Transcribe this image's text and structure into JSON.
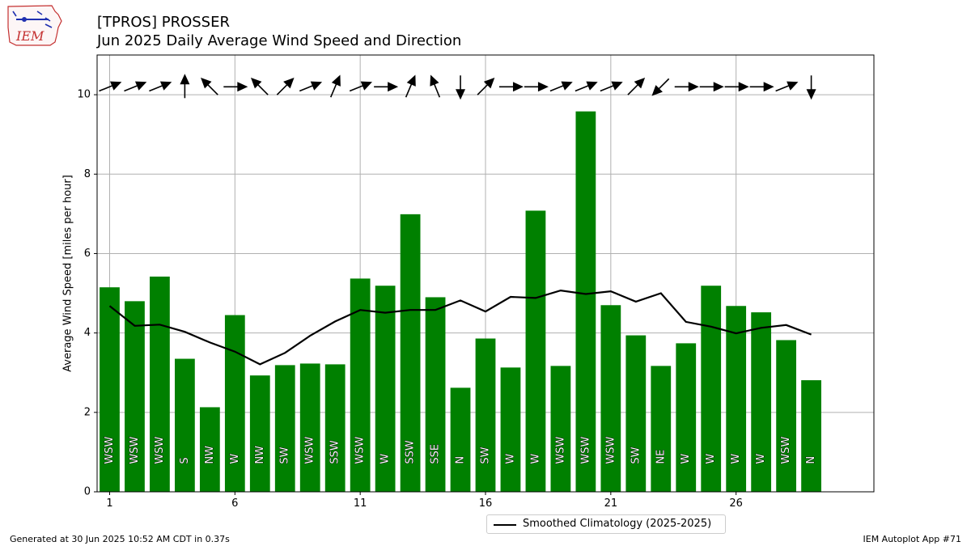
{
  "header": {
    "title_line1": "[TPROS] PROSSER",
    "title_line2": "Jun 2025 Daily Average Wind Speed and Direction"
  },
  "logo": {
    "text": "IEM",
    "icon": "iowa-state-map-logo"
  },
  "footer": {
    "generated": "Generated at 30 Jun 2025 10:52 AM CDT in 0.37s",
    "app": "IEM Autoplot App #71"
  },
  "legend": {
    "label": "Smoothed Climatology (2025-2025)"
  },
  "colors": {
    "bar": "#008000",
    "line": "#000000",
    "grid": "#b0b0b0",
    "label_text": "#ffffff"
  },
  "chart_data": {
    "type": "bar",
    "ylabel": "Average Wind Speed [miles per hour]",
    "xlabel": "",
    "xlim": [
      0.5,
      31.5
    ],
    "ylim": [
      0,
      11
    ],
    "xticks": [
      1,
      6,
      11,
      16,
      21,
      26
    ],
    "yticks": [
      0,
      2,
      4,
      6,
      8,
      10
    ],
    "grid": true,
    "legend_position": "below center",
    "days": [
      1,
      2,
      3,
      4,
      5,
      6,
      7,
      8,
      9,
      10,
      11,
      12,
      13,
      14,
      15,
      16,
      17,
      18,
      19,
      20,
      21,
      22,
      23,
      24,
      25,
      26,
      27,
      28,
      29
    ],
    "values": [
      5.15,
      4.8,
      5.42,
      3.35,
      2.13,
      4.45,
      2.93,
      3.19,
      3.23,
      3.21,
      5.37,
      5.19,
      6.99,
      4.9,
      2.62,
      3.86,
      3.13,
      7.08,
      3.17,
      9.58,
      4.7,
      3.94,
      3.17,
      3.74,
      5.19,
      4.68,
      4.52,
      3.82,
      2.81
    ],
    "directions": [
      "WSW",
      "WSW",
      "WSW",
      "S",
      "NW",
      "W",
      "NW",
      "SW",
      "WSW",
      "SSW",
      "WSW",
      "W",
      "SSW",
      "SSE",
      "N",
      "SW",
      "W",
      "W",
      "WSW",
      "WSW",
      "WSW",
      "SW",
      "NE",
      "W",
      "W",
      "W",
      "W",
      "WSW",
      "N"
    ],
    "arrow_angles_deg": [
      68,
      68,
      68,
      0,
      315,
      90,
      315,
      45,
      68,
      23,
      68,
      90,
      23,
      338,
      180,
      45,
      90,
      90,
      68,
      68,
      68,
      45,
      225,
      90,
      90,
      90,
      90,
      68,
      180
    ],
    "climatology": {
      "name": "Smoothed Climatology (2025-2025)",
      "values": [
        4.68,
        4.18,
        4.21,
        4.03,
        3.76,
        3.53,
        3.21,
        3.5,
        3.93,
        4.29,
        4.58,
        4.51,
        4.58,
        4.58,
        4.82,
        4.54,
        4.91,
        4.88,
        5.07,
        4.98,
        5.05,
        4.79,
        5.0,
        4.28,
        4.16,
        3.99,
        4.13,
        4.2,
        3.96
      ]
    }
  }
}
